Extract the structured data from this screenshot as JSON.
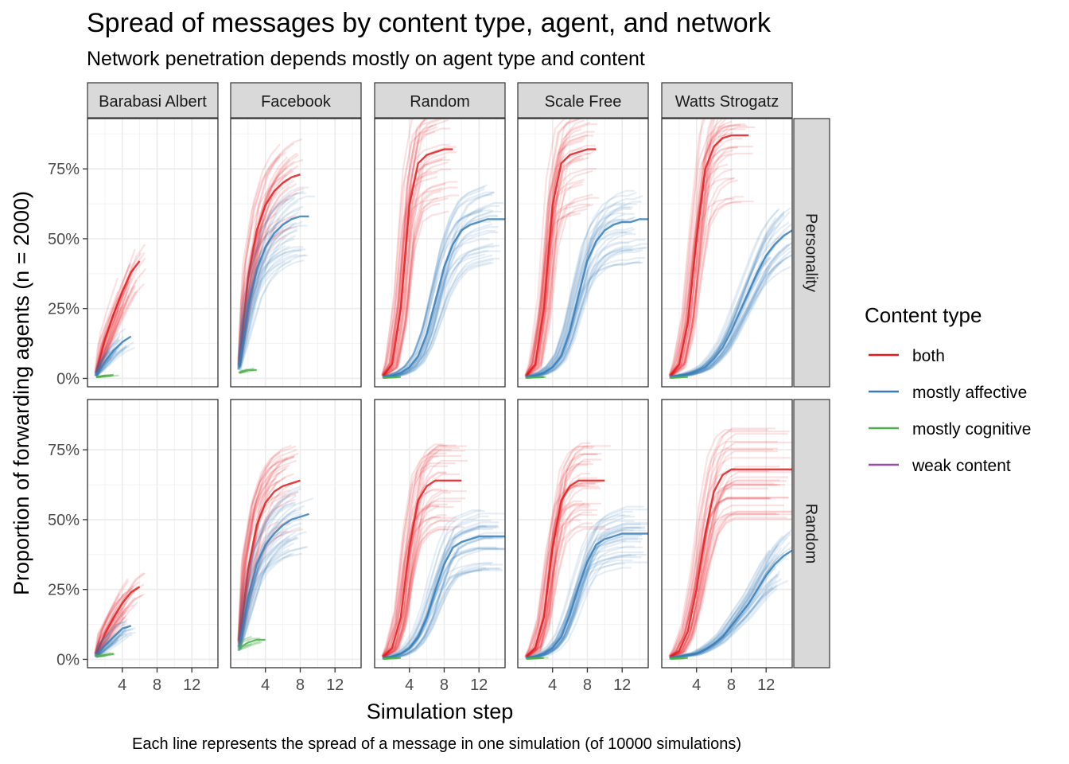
{
  "chart_data": {
    "type": "line",
    "title": "Spread of messages by content type, agent, and network",
    "subtitle": "Network penetration depends mostly on agent type and content",
    "caption": "Each line represents the spread of a message in one simulation (of 10000 simulations)",
    "xlabel": "Simulation step",
    "ylabel": "Proportion of forwarding agents (n = 2000)",
    "xlim": [
      0,
      15
    ],
    "ylim": [
      -0.03,
      0.93
    ],
    "x_ticks": [
      4,
      8,
      12
    ],
    "x_tick_labels": [
      "4",
      "8",
      "12"
    ],
    "y_ticks": [
      0,
      0.25,
      0.5,
      0.75
    ],
    "y_tick_labels": [
      "0%",
      "25%",
      "50%",
      "75%"
    ],
    "grid": true,
    "columns": [
      "Barabasi Albert",
      "Facebook",
      "Random",
      "Scale Free",
      "Watts Strogatz"
    ],
    "rows": [
      "Personality",
      "Random"
    ],
    "legend": {
      "title": "Content type",
      "position": "right",
      "entries": [
        {
          "label": "both",
          "color": "#E41A1C"
        },
        {
          "label": "mostly affective",
          "color": "#377EB8"
        },
        {
          "label": "mostly cognitive",
          "color": "#4DAF4A"
        },
        {
          "label": "weak content",
          "color": "#984EA3"
        }
      ]
    },
    "panels": [
      {
        "row": "Personality",
        "column": "Barabasi Albert",
        "series": [
          {
            "name": "both",
            "color": "#E41A1C",
            "x": [
              1,
              2,
              3,
              4,
              5,
              6
            ],
            "y": [
              0.02,
              0.14,
              0.23,
              0.31,
              0.38,
              0.42
            ]
          },
          {
            "name": "mostly affective",
            "color": "#377EB8",
            "x": [
              1,
              2,
              3,
              4,
              5
            ],
            "y": [
              0.01,
              0.06,
              0.1,
              0.13,
              0.15
            ]
          },
          {
            "name": "mostly cognitive",
            "color": "#4DAF4A",
            "x": [
              1,
              2,
              3
            ],
            "y": [
              0.005,
              0.01,
              0.012
            ]
          }
        ]
      },
      {
        "row": "Personality",
        "column": "Facebook",
        "series": [
          {
            "name": "both",
            "color": "#E41A1C",
            "x": [
              1,
              2,
              3,
              4,
              5,
              6,
              7,
              8
            ],
            "y": [
              0.06,
              0.36,
              0.53,
              0.62,
              0.67,
              0.7,
              0.72,
              0.73
            ]
          },
          {
            "name": "mostly affective",
            "color": "#377EB8",
            "x": [
              1,
              2,
              3,
              4,
              5,
              6,
              7,
              8,
              9
            ],
            "y": [
              0.04,
              0.25,
              0.39,
              0.47,
              0.52,
              0.55,
              0.57,
              0.58,
              0.58
            ]
          },
          {
            "name": "mostly cognitive",
            "color": "#4DAF4A",
            "x": [
              1,
              2,
              3
            ],
            "y": [
              0.02,
              0.03,
              0.03
            ]
          }
        ]
      },
      {
        "row": "Personality",
        "column": "Random",
        "series": [
          {
            "name": "both",
            "color": "#E41A1C",
            "x": [
              1,
              2,
              3,
              4,
              5,
              6,
              7,
              8,
              9
            ],
            "y": [
              0.01,
              0.05,
              0.25,
              0.62,
              0.77,
              0.8,
              0.81,
              0.82,
              0.82
            ]
          },
          {
            "name": "mostly affective",
            "color": "#377EB8",
            "x": [
              1,
              2,
              3,
              4,
              5,
              6,
              7,
              8,
              9,
              10,
              11,
              12,
              13,
              14,
              15
            ],
            "y": [
              0.005,
              0.01,
              0.02,
              0.04,
              0.08,
              0.16,
              0.28,
              0.4,
              0.48,
              0.53,
              0.55,
              0.56,
              0.57,
              0.57,
              0.57
            ]
          },
          {
            "name": "mostly cognitive",
            "color": "#4DAF4A",
            "x": [
              1,
              2,
              3
            ],
            "y": [
              0.002,
              0.004,
              0.005
            ]
          }
        ]
      },
      {
        "row": "Personality",
        "column": "Scale Free",
        "series": [
          {
            "name": "both",
            "color": "#E41A1C",
            "x": [
              1,
              2,
              3,
              4,
              5,
              6,
              7,
              8,
              9
            ],
            "y": [
              0.01,
              0.05,
              0.25,
              0.62,
              0.77,
              0.8,
              0.81,
              0.82,
              0.82
            ]
          },
          {
            "name": "mostly affective",
            "color": "#377EB8",
            "x": [
              1,
              2,
              3,
              4,
              5,
              6,
              7,
              8,
              9,
              10,
              11,
              12,
              13,
              14,
              15
            ],
            "y": [
              0.005,
              0.01,
              0.02,
              0.04,
              0.08,
              0.17,
              0.3,
              0.42,
              0.49,
              0.53,
              0.55,
              0.56,
              0.56,
              0.57,
              0.57
            ]
          },
          {
            "name": "mostly cognitive",
            "color": "#4DAF4A",
            "x": [
              1,
              2,
              3
            ],
            "y": [
              0.002,
              0.004,
              0.005
            ]
          }
        ]
      },
      {
        "row": "Personality",
        "column": "Watts Strogatz",
        "series": [
          {
            "name": "both",
            "color": "#E41A1C",
            "x": [
              1,
              2,
              3,
              4,
              5,
              6,
              7,
              8,
              9,
              10
            ],
            "y": [
              0.01,
              0.05,
              0.2,
              0.5,
              0.75,
              0.83,
              0.86,
              0.87,
              0.87,
              0.87
            ]
          },
          {
            "name": "mostly affective",
            "color": "#377EB8",
            "x": [
              1,
              2,
              3,
              4,
              5,
              6,
              7,
              8,
              9,
              10,
              11,
              12,
              13,
              14,
              15
            ],
            "y": [
              0.005,
              0.01,
              0.015,
              0.025,
              0.04,
              0.07,
              0.11,
              0.17,
              0.24,
              0.31,
              0.38,
              0.44,
              0.48,
              0.51,
              0.53
            ]
          },
          {
            "name": "mostly cognitive",
            "color": "#4DAF4A",
            "x": [
              1,
              2,
              3
            ],
            "y": [
              0.002,
              0.004,
              0.005
            ]
          }
        ]
      },
      {
        "row": "Random",
        "column": "Barabasi Albert",
        "series": [
          {
            "name": "both",
            "color": "#E41A1C",
            "x": [
              1,
              2,
              3,
              4,
              5,
              6
            ],
            "y": [
              0.02,
              0.09,
              0.15,
              0.2,
              0.24,
              0.26
            ]
          },
          {
            "name": "mostly affective",
            "color": "#377EB8",
            "x": [
              1,
              2,
              3,
              4,
              5
            ],
            "y": [
              0.01,
              0.05,
              0.08,
              0.11,
              0.12
            ]
          },
          {
            "name": "mostly cognitive",
            "color": "#4DAF4A",
            "x": [
              1,
              2,
              3
            ],
            "y": [
              0.01,
              0.015,
              0.02
            ]
          }
        ]
      },
      {
        "row": "Random",
        "column": "Facebook",
        "series": [
          {
            "name": "both",
            "color": "#E41A1C",
            "x": [
              1,
              2,
              3,
              4,
              5,
              6,
              7,
              8
            ],
            "y": [
              0.06,
              0.32,
              0.48,
              0.56,
              0.6,
              0.62,
              0.63,
              0.64
            ]
          },
          {
            "name": "mostly affective",
            "color": "#377EB8",
            "x": [
              1,
              2,
              3,
              4,
              5,
              6,
              7,
              8,
              9
            ],
            "y": [
              0.04,
              0.22,
              0.34,
              0.41,
              0.45,
              0.48,
              0.5,
              0.51,
              0.52
            ]
          },
          {
            "name": "mostly cognitive",
            "color": "#4DAF4A",
            "x": [
              1,
              2,
              3,
              4
            ],
            "y": [
              0.04,
              0.06,
              0.07,
              0.07
            ]
          }
        ]
      },
      {
        "row": "Random",
        "column": "Random",
        "series": [
          {
            "name": "both",
            "color": "#E41A1C",
            "x": [
              1,
              2,
              3,
              4,
              5,
              6,
              7,
              8,
              9,
              10
            ],
            "y": [
              0.01,
              0.04,
              0.15,
              0.4,
              0.57,
              0.62,
              0.64,
              0.64,
              0.64,
              0.64
            ]
          },
          {
            "name": "mostly affective",
            "color": "#377EB8",
            "x": [
              1,
              2,
              3,
              4,
              5,
              6,
              7,
              8,
              9,
              10,
              11,
              12,
              13,
              14,
              15
            ],
            "y": [
              0.005,
              0.01,
              0.02,
              0.04,
              0.08,
              0.15,
              0.25,
              0.34,
              0.4,
              0.42,
              0.43,
              0.44,
              0.44,
              0.44,
              0.44
            ]
          },
          {
            "name": "mostly cognitive",
            "color": "#4DAF4A",
            "x": [
              1,
              2,
              3
            ],
            "y": [
              0.002,
              0.004,
              0.005
            ]
          }
        ]
      },
      {
        "row": "Random",
        "column": "Scale Free",
        "series": [
          {
            "name": "both",
            "color": "#E41A1C",
            "x": [
              1,
              2,
              3,
              4,
              5,
              6,
              7,
              8,
              9,
              10
            ],
            "y": [
              0.01,
              0.04,
              0.15,
              0.4,
              0.57,
              0.62,
              0.64,
              0.64,
              0.64,
              0.64
            ]
          },
          {
            "name": "mostly affective",
            "color": "#377EB8",
            "x": [
              1,
              2,
              3,
              4,
              5,
              6,
              7,
              8,
              9,
              10,
              11,
              12,
              13,
              14,
              15
            ],
            "y": [
              0.005,
              0.01,
              0.02,
              0.04,
              0.08,
              0.16,
              0.26,
              0.35,
              0.41,
              0.43,
              0.44,
              0.45,
              0.45,
              0.45,
              0.45
            ]
          },
          {
            "name": "mostly cognitive",
            "color": "#4DAF4A",
            "x": [
              1,
              2,
              3
            ],
            "y": [
              0.002,
              0.004,
              0.005
            ]
          }
        ]
      },
      {
        "row": "Random",
        "column": "Watts Strogatz",
        "series": [
          {
            "name": "both",
            "color": "#E41A1C",
            "x": [
              1,
              2,
              3,
              4,
              5,
              6,
              7,
              8,
              9,
              10,
              11,
              12,
              13,
              14,
              15
            ],
            "y": [
              0.01,
              0.03,
              0.1,
              0.25,
              0.45,
              0.6,
              0.66,
              0.68,
              0.68,
              0.68,
              0.68,
              0.68,
              0.68,
              0.68,
              0.68
            ]
          },
          {
            "name": "mostly affective",
            "color": "#377EB8",
            "x": [
              1,
              2,
              3,
              4,
              5,
              6,
              7,
              8,
              9,
              10,
              11,
              12,
              13,
              14,
              15
            ],
            "y": [
              0.005,
              0.01,
              0.015,
              0.02,
              0.035,
              0.055,
              0.08,
              0.12,
              0.16,
              0.2,
              0.25,
              0.3,
              0.34,
              0.37,
              0.39
            ]
          },
          {
            "name": "mostly cognitive",
            "color": "#4DAF4A",
            "x": [
              1,
              2,
              3
            ],
            "y": [
              0.002,
              0.004,
              0.005
            ]
          }
        ]
      }
    ]
  }
}
